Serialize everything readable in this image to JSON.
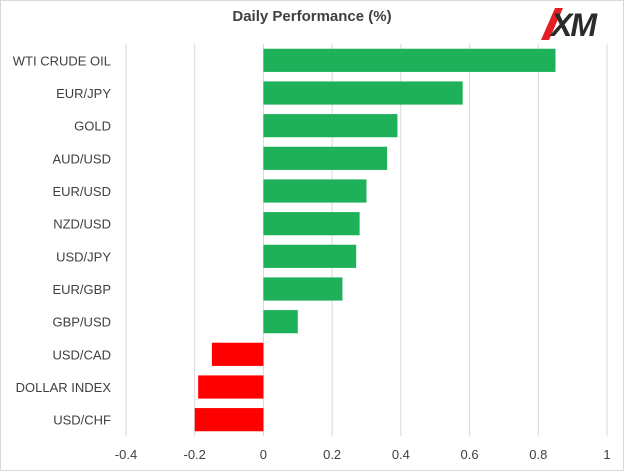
{
  "logo_text": "XM",
  "chart_data": {
    "type": "bar",
    "orientation": "horizontal",
    "title": "Daily Performance (%)",
    "xlabel": "",
    "ylabel": "",
    "categories": [
      "WTI CRUDE OIL",
      "EUR/JPY",
      "GOLD",
      "AUD/USD",
      "EUR/USD",
      "NZD/USD",
      "USD/JPY",
      "EUR/GBP",
      "GBP/USD",
      "USD/CAD",
      "DOLLAR INDEX",
      "USD/CHF"
    ],
    "values": [
      0.85,
      0.58,
      0.39,
      0.36,
      0.3,
      0.28,
      0.27,
      0.23,
      0.1,
      -0.15,
      -0.19,
      -0.2
    ],
    "xlim": [
      -0.4,
      1
    ],
    "ticks": [
      -0.4,
      -0.2,
      0,
      0.2,
      0.4,
      0.6,
      0.8,
      1
    ],
    "tick_labels": [
      "-0.4",
      "-0.2",
      "0",
      "0.2",
      "0.4",
      "0.6",
      "0.8",
      "1"
    ],
    "grid": "vertical",
    "legend": "none",
    "colors": {
      "positive": "#1eb15a",
      "negative": "#ff0000",
      "grid": "#d9d9d9",
      "text": "#404040"
    }
  }
}
